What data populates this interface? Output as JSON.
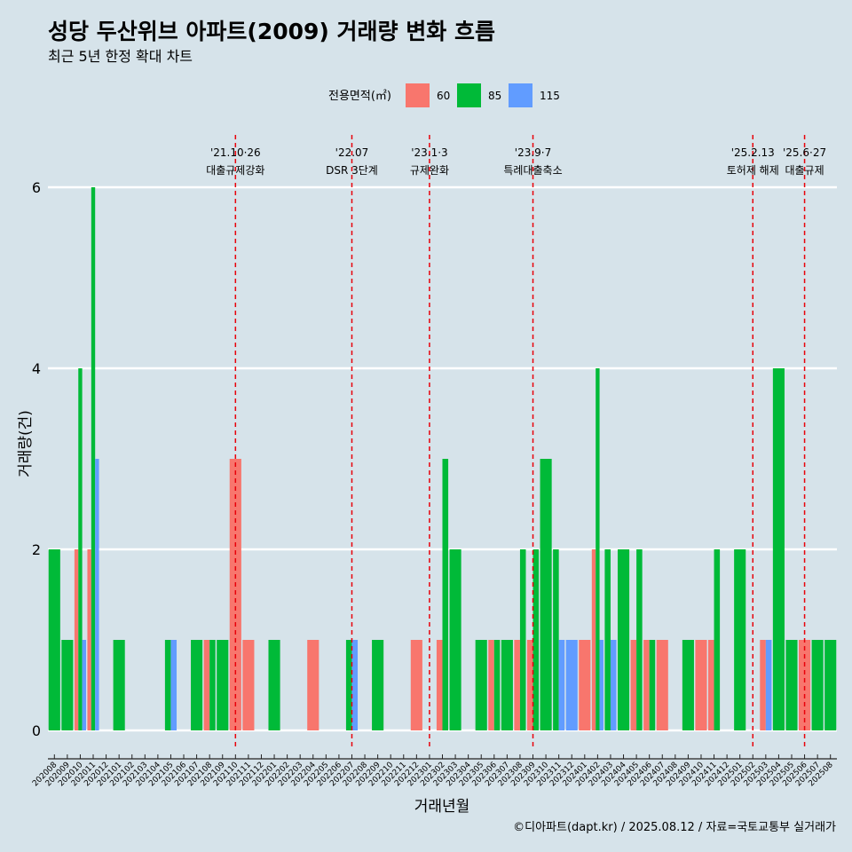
{
  "title": "성당 두산위브 아파트(2009) 거래량 변화 흐름",
  "subtitle": "최근 5년 한정 확대 차트",
  "caption": "©디아파트(dapt.kr) / 2025.08.12 / 자료=국토교통부 실거래가",
  "colors": {
    "background": "#d6e3ea",
    "60": "#f8766d",
    "85": "#00ba38",
    "115": "#619cff",
    "event_line": "#e8000b",
    "grid": "#ffffff"
  },
  "chart_data": {
    "type": "bar",
    "title": "성당 두산위브 아파트(2009) 거래량 변화 흐름",
    "subtitle": "최근 5년 한정 확대 차트",
    "xlabel": "거래년월",
    "ylabel": "거래량(건)",
    "ylim": [
      0,
      6
    ],
    "yticks": [
      0,
      2,
      4,
      6
    ],
    "grid": "horizontal major lines",
    "legend_placement": "top",
    "legend_title": "전용면적(㎡)",
    "legend": [
      "60",
      "85",
      "115"
    ],
    "categories": [
      "202008",
      "202009",
      "202010",
      "202011",
      "202012",
      "202101",
      "202102",
      "202103",
      "202104",
      "202105",
      "202106",
      "202107",
      "202108",
      "202109",
      "202110",
      "202111",
      "202112",
      "202201",
      "202202",
      "202203",
      "202204",
      "202205",
      "202206",
      "202207",
      "202208",
      "202209",
      "202210",
      "202211",
      "202212",
      "202301",
      "202302",
      "202303",
      "202304",
      "202305",
      "202306",
      "202307",
      "202308",
      "202309",
      "202310",
      "202311",
      "202312",
      "202401",
      "202402",
      "202403",
      "202404",
      "202405",
      "202406",
      "202407",
      "202408",
      "202409",
      "202410",
      "202411",
      "202412",
      "202501",
      "202502",
      "202503",
      "202504",
      "202505",
      "202506",
      "202507",
      "202508"
    ],
    "bars": [
      {
        "month": "202008",
        "series": [
          "85"
        ],
        "values": [
          2
        ]
      },
      {
        "month": "202009",
        "series": [
          "85"
        ],
        "values": [
          1
        ]
      },
      {
        "month": "202010",
        "series": [
          "60",
          "85",
          "115"
        ],
        "values": [
          2,
          4,
          1
        ]
      },
      {
        "month": "202011",
        "series": [
          "60",
          "85",
          "115"
        ],
        "values": [
          2,
          6,
          3
        ]
      },
      {
        "month": "202101",
        "series": [
          "85"
        ],
        "values": [
          1
        ]
      },
      {
        "month": "202105",
        "series": [
          "85",
          "115"
        ],
        "values": [
          1,
          1
        ]
      },
      {
        "month": "202107",
        "series": [
          "85"
        ],
        "values": [
          1
        ]
      },
      {
        "month": "202108",
        "series": [
          "60",
          "85"
        ],
        "values": [
          1,
          1
        ]
      },
      {
        "month": "202109",
        "series": [
          "85"
        ],
        "values": [
          1
        ]
      },
      {
        "month": "202110",
        "series": [
          "60"
        ],
        "values": [
          3
        ]
      },
      {
        "month": "202111",
        "series": [
          "60"
        ],
        "values": [
          1
        ]
      },
      {
        "month": "202201",
        "series": [
          "85"
        ],
        "values": [
          1
        ]
      },
      {
        "month": "202204",
        "series": [
          "60"
        ],
        "values": [
          1
        ]
      },
      {
        "month": "202207",
        "series": [
          "85",
          "115"
        ],
        "values": [
          1,
          1
        ]
      },
      {
        "month": "202209",
        "series": [
          "85"
        ],
        "values": [
          1
        ]
      },
      {
        "month": "202212",
        "series": [
          "60"
        ],
        "values": [
          1
        ]
      },
      {
        "month": "202302",
        "series": [
          "60",
          "85"
        ],
        "values": [
          1,
          3
        ]
      },
      {
        "month": "202303",
        "series": [
          "85"
        ],
        "values": [
          2
        ]
      },
      {
        "month": "202305",
        "series": [
          "85"
        ],
        "values": [
          1
        ]
      },
      {
        "month": "202306",
        "series": [
          "60",
          "85"
        ],
        "values": [
          1,
          1
        ]
      },
      {
        "month": "202307",
        "series": [
          "85"
        ],
        "values": [
          1
        ]
      },
      {
        "month": "202308",
        "series": [
          "60",
          "85"
        ],
        "values": [
          1,
          2
        ]
      },
      {
        "month": "202309",
        "series": [
          "60",
          "85"
        ],
        "values": [
          1,
          2
        ]
      },
      {
        "month": "202310",
        "series": [
          "85"
        ],
        "values": [
          3
        ]
      },
      {
        "month": "202311",
        "series": [
          "85",
          "115"
        ],
        "values": [
          2,
          1
        ]
      },
      {
        "month": "202312",
        "series": [
          "115"
        ],
        "values": [
          1
        ]
      },
      {
        "month": "202401",
        "series": [
          "60"
        ],
        "values": [
          1
        ]
      },
      {
        "month": "202402",
        "series": [
          "60",
          "85",
          "115"
        ],
        "values": [
          2,
          4,
          1
        ]
      },
      {
        "month": "202403",
        "series": [
          "85",
          "115"
        ],
        "values": [
          2,
          1
        ]
      },
      {
        "month": "202404",
        "series": [
          "85"
        ],
        "values": [
          2
        ]
      },
      {
        "month": "202405",
        "series": [
          "60",
          "85"
        ],
        "values": [
          1,
          2
        ]
      },
      {
        "month": "202406",
        "series": [
          "60",
          "85"
        ],
        "values": [
          1,
          1
        ]
      },
      {
        "month": "202407",
        "series": [
          "60"
        ],
        "values": [
          1
        ]
      },
      {
        "month": "202409",
        "series": [
          "85"
        ],
        "values": [
          1
        ]
      },
      {
        "month": "202410",
        "series": [
          "60"
        ],
        "values": [
          1
        ]
      },
      {
        "month": "202411",
        "series": [
          "60",
          "85"
        ],
        "values": [
          1,
          2
        ]
      },
      {
        "month": "202501",
        "series": [
          "85"
        ],
        "values": [
          2
        ]
      },
      {
        "month": "202503",
        "series": [
          "60",
          "115"
        ],
        "values": [
          1,
          1
        ]
      },
      {
        "month": "202504",
        "series": [
          "85"
        ],
        "values": [
          4
        ]
      },
      {
        "month": "202505",
        "series": [
          "85"
        ],
        "values": [
          1
        ]
      },
      {
        "month": "202506",
        "series": [
          "60"
        ],
        "values": [
          1
        ]
      },
      {
        "month": "202507",
        "series": [
          "85"
        ],
        "values": [
          1
        ]
      },
      {
        "month": "202508",
        "series": [
          "85"
        ],
        "values": [
          1
        ]
      }
    ],
    "events": [
      {
        "month": "202110",
        "date": "'21.10·26",
        "desc": "대출규제강화"
      },
      {
        "month": "202207",
        "date": "'22.07",
        "desc": "DSR 3단계"
      },
      {
        "month": "202301",
        "date": "'23.1·3",
        "desc": "규제완화"
      },
      {
        "month": "202309",
        "date": "'23.9·7",
        "desc": "특례대출축소"
      },
      {
        "month": "202502",
        "date": "'25.2.13",
        "desc": "토허제 해제"
      },
      {
        "month": "202506",
        "date": "'25.6·27",
        "desc": "대출규제"
      }
    ]
  }
}
